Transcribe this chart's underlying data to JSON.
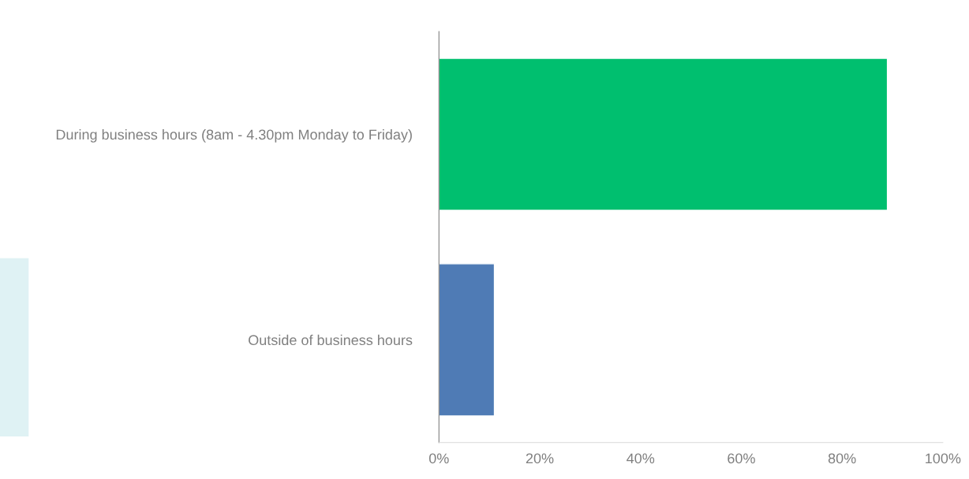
{
  "chart_data": {
    "type": "bar",
    "orientation": "horizontal",
    "categories": [
      "During business hours (8am - 4.30pm Monday to Friday)",
      "Outside of business hours"
    ],
    "values": [
      89,
      11
    ],
    "colors": [
      "#00bf6f",
      "#4f7bb5"
    ],
    "xlim": [
      0,
      100
    ],
    "xticks": [
      {
        "value": 0,
        "label": "0%"
      },
      {
        "value": 20,
        "label": "20%"
      },
      {
        "value": 40,
        "label": "40%"
      },
      {
        "value": 60,
        "label": "60%"
      },
      {
        "value": 80,
        "label": "80%"
      },
      {
        "value": 100,
        "label": "100%"
      }
    ],
    "grid": false,
    "legend": false
  }
}
